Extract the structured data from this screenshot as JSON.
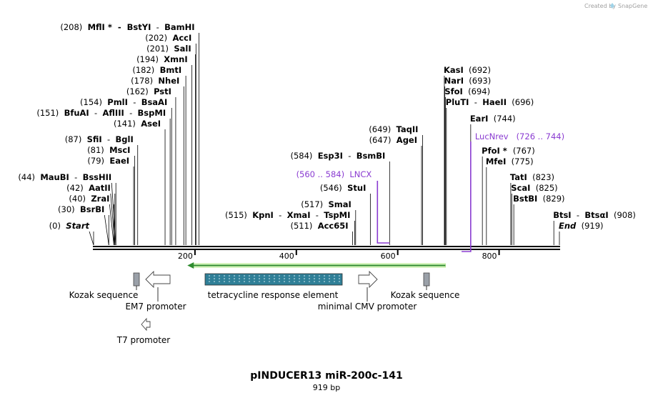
{
  "header": {
    "created_by": "Created by",
    "brand": "SnapGene"
  },
  "map": {
    "title": "pINDUCER13 miR-200c-141",
    "length_label": "919 bp",
    "total_bp": 919,
    "ticks": [
      {
        "pos": 200,
        "label": "200"
      },
      {
        "pos": 400,
        "label": "400"
      },
      {
        "pos": 600,
        "label": "600"
      },
      {
        "pos": 800,
        "label": "800"
      }
    ]
  },
  "sites": [
    {
      "id": "s-start",
      "pos": 0,
      "parts": [
        {
          "t": "(0)  ",
          "c": "num"
        },
        {
          "t": "Start",
          "c": "enz italic"
        }
      ]
    },
    {
      "id": "s-bsrbi",
      "pos": 30,
      "parts": [
        {
          "t": "(30)  ",
          "c": "num"
        },
        {
          "t": "BsrBI",
          "c": "enz"
        }
      ]
    },
    {
      "id": "s-zrai",
      "pos": 40,
      "parts": [
        {
          "t": "(40)  ",
          "c": "num"
        },
        {
          "t": "ZraI",
          "c": "enz"
        }
      ]
    },
    {
      "id": "s-aatii",
      "pos": 42,
      "parts": [
        {
          "t": "(42)  ",
          "c": "num"
        },
        {
          "t": "AatII",
          "c": "enz"
        }
      ]
    },
    {
      "id": "s-maubi",
      "pos": 44,
      "parts": [
        {
          "t": "(44)  ",
          "c": "num"
        },
        {
          "t": "MauBI",
          "c": "enz"
        },
        {
          "t": "  -  ",
          "c": "num"
        },
        {
          "t": "BssHII",
          "c": "enz"
        }
      ]
    },
    {
      "id": "s-eaei",
      "pos": 79,
      "parts": [
        {
          "t": "(79)  ",
          "c": "num"
        },
        {
          "t": "EaeI",
          "c": "enz"
        }
      ]
    },
    {
      "id": "s-msci",
      "pos": 81,
      "parts": [
        {
          "t": "(81)  ",
          "c": "num"
        },
        {
          "t": "MscI",
          "c": "enz"
        }
      ]
    },
    {
      "id": "s-sfii",
      "pos": 87,
      "parts": [
        {
          "t": "(87)  ",
          "c": "num"
        },
        {
          "t": "SfiI",
          "c": "enz"
        },
        {
          "t": "  -  ",
          "c": "num"
        },
        {
          "t": "BglI",
          "c": "enz"
        }
      ]
    },
    {
      "id": "s-asei",
      "pos": 141,
      "parts": [
        {
          "t": "(141)  ",
          "c": "num"
        },
        {
          "t": "AseI",
          "c": "enz"
        }
      ]
    },
    {
      "id": "s-bfuai",
      "pos": 151,
      "parts": [
        {
          "t": "(151)  ",
          "c": "num"
        },
        {
          "t": "BfuAI",
          "c": "enz"
        },
        {
          "t": "  -  ",
          "c": "num"
        },
        {
          "t": "AflIII",
          "c": "enz"
        },
        {
          "t": "  -  ",
          "c": "num"
        },
        {
          "t": "BspMI",
          "c": "enz"
        }
      ]
    },
    {
      "id": "s-pmli",
      "pos": 154,
      "parts": [
        {
          "t": "(154)  ",
          "c": "num"
        },
        {
          "t": "PmlI",
          "c": "enz"
        },
        {
          "t": "  -  ",
          "c": "num"
        },
        {
          "t": "BsaAI",
          "c": "enz"
        }
      ]
    },
    {
      "id": "s-psti",
      "pos": 162,
      "parts": [
        {
          "t": "(162)  ",
          "c": "num"
        },
        {
          "t": "PstI",
          "c": "enz"
        }
      ]
    },
    {
      "id": "s-nhei",
      "pos": 178,
      "parts": [
        {
          "t": "(178)  ",
          "c": "num"
        },
        {
          "t": "NheI",
          "c": "enz"
        }
      ]
    },
    {
      "id": "s-bmti",
      "pos": 182,
      "parts": [
        {
          "t": "(182)  ",
          "c": "num"
        },
        {
          "t": "BmtI",
          "c": "enz"
        }
      ]
    },
    {
      "id": "s-xmni",
      "pos": 194,
      "parts": [
        {
          "t": "(194)  ",
          "c": "num"
        },
        {
          "t": "XmnI",
          "c": "enz"
        }
      ]
    },
    {
      "id": "s-sali",
      "pos": 201,
      "parts": [
        {
          "t": "(201)  ",
          "c": "num"
        },
        {
          "t": "SalI",
          "c": "enz"
        }
      ]
    },
    {
      "id": "s-acci",
      "pos": 202,
      "parts": [
        {
          "t": "(202)  ",
          "c": "num"
        },
        {
          "t": "AccI",
          "c": "enz"
        }
      ]
    },
    {
      "id": "s-mfli",
      "pos": 208,
      "parts": [
        {
          "t": "(208)  ",
          "c": "num"
        },
        {
          "t": "MflI",
          "c": "enz"
        },
        {
          "t": " *  -  ",
          "c": "enz"
        },
        {
          "t": "BstYI",
          "c": "enz"
        },
        {
          "t": "  -  ",
          "c": "num"
        },
        {
          "t": "BamHI",
          "c": "enz"
        }
      ]
    },
    {
      "id": "s-acc65i",
      "pos": 511,
      "parts": [
        {
          "t": "(511)  ",
          "c": "num"
        },
        {
          "t": "Acc65I",
          "c": "enz"
        }
      ]
    },
    {
      "id": "s-kpni",
      "pos": 515,
      "parts": [
        {
          "t": "(515)  ",
          "c": "num"
        },
        {
          "t": "KpnI",
          "c": "enz"
        },
        {
          "t": "  -  ",
          "c": "num"
        },
        {
          "t": "XmaI",
          "c": "enz"
        },
        {
          "t": "  -  ",
          "c": "num"
        },
        {
          "t": "TspMI",
          "c": "enz"
        }
      ]
    },
    {
      "id": "s-smai",
      "pos": 517,
      "parts": [
        {
          "t": "(517)  ",
          "c": "num"
        },
        {
          "t": "SmaI",
          "c": "enz"
        }
      ]
    },
    {
      "id": "s-stui",
      "pos": 546,
      "parts": [
        {
          "t": "(546)  ",
          "c": "num"
        },
        {
          "t": "StuI",
          "c": "enz"
        }
      ]
    },
    {
      "id": "s-esp3i",
      "pos": 584,
      "parts": [
        {
          "t": "(584)  ",
          "c": "num"
        },
        {
          "t": "Esp3I",
          "c": "enz"
        },
        {
          "t": "  -  ",
          "c": "num"
        },
        {
          "t": "BsmBI",
          "c": "enz"
        }
      ]
    },
    {
      "id": "s-agei",
      "pos": 647,
      "parts": [
        {
          "t": "(647)  ",
          "c": "num"
        },
        {
          "t": "AgeI",
          "c": "enz"
        }
      ]
    },
    {
      "id": "s-taqii",
      "pos": 649,
      "parts": [
        {
          "t": "(649)  ",
          "c": "num"
        },
        {
          "t": "TaqII",
          "c": "enz"
        }
      ]
    },
    {
      "id": "s-kasi",
      "pos": 692,
      "parts": [
        {
          "t": "KasI",
          "c": "enz"
        },
        {
          "t": "  (692)",
          "c": "num"
        }
      ]
    },
    {
      "id": "s-nari",
      "pos": 693,
      "parts": [
        {
          "t": "NarI",
          "c": "enz"
        },
        {
          "t": "  (693)",
          "c": "num"
        }
      ]
    },
    {
      "id": "s-sfoi",
      "pos": 694,
      "parts": [
        {
          "t": "SfoI",
          "c": "enz"
        },
        {
          "t": "  (694)",
          "c": "num"
        }
      ]
    },
    {
      "id": "s-pluti",
      "pos": 696,
      "parts": [
        {
          "t": "PluTI",
          "c": "enz"
        },
        {
          "t": "  -  ",
          "c": "num"
        },
        {
          "t": "HaeII",
          "c": "enz"
        },
        {
          "t": "  (696)",
          "c": "num"
        }
      ]
    },
    {
      "id": "s-eari",
      "pos": 744,
      "parts": [
        {
          "t": "EarI",
          "c": "enz"
        },
        {
          "t": "  (744)",
          "c": "num"
        }
      ]
    },
    {
      "id": "s-pfoi",
      "pos": 767,
      "parts": [
        {
          "t": "PfoI",
          "c": "enz"
        },
        {
          "t": " *  ",
          "c": "enz"
        },
        {
          "t": "(767)",
          "c": "num"
        }
      ]
    },
    {
      "id": "s-mfei",
      "pos": 775,
      "parts": [
        {
          "t": "MfeI",
          "c": "enz"
        },
        {
          "t": "  (775)",
          "c": "num"
        }
      ]
    },
    {
      "id": "s-tati",
      "pos": 823,
      "parts": [
        {
          "t": "TatI",
          "c": "enz"
        },
        {
          "t": "  (823)",
          "c": "num"
        }
      ]
    },
    {
      "id": "s-scai",
      "pos": 825,
      "parts": [
        {
          "t": "ScaI",
          "c": "enz"
        },
        {
          "t": "  (825)",
          "c": "num"
        }
      ]
    },
    {
      "id": "s-bstbi",
      "pos": 829,
      "parts": [
        {
          "t": "BstBI",
          "c": "enz"
        },
        {
          "t": "  (829)",
          "c": "num"
        }
      ]
    },
    {
      "id": "s-btsi",
      "pos": 908,
      "parts": [
        {
          "t": "BtsI",
          "c": "enz"
        },
        {
          "t": "  -  ",
          "c": "num"
        },
        {
          "t": "BtsαI",
          "c": "enz"
        },
        {
          "t": "  (908)",
          "c": "num"
        }
      ]
    },
    {
      "id": "s-end",
      "pos": 919,
      "parts": [
        {
          "t": "End",
          "c": "enz italic"
        },
        {
          "t": "  (919)",
          "c": "num"
        }
      ]
    }
  ],
  "primers": [
    {
      "id": "lncx",
      "name": "LNCX",
      "range": "(560 .. 584)",
      "start": 560,
      "end": 584,
      "label": "(560 .. 584)  LNCX",
      "color": "#8a3bd1"
    },
    {
      "id": "lucnrev",
      "name": "LucNrev",
      "range": "(726 .. 744)",
      "start": 726,
      "end": 744,
      "label": "LucNrev   (726 .. 744)",
      "color": "#8a3bd1"
    }
  ],
  "features": [
    {
      "id": "kozak-left",
      "label": "Kozak sequence",
      "start": 80,
      "end": 90,
      "type": "box",
      "color": "#9aa0a8"
    },
    {
      "id": "em7-promoter",
      "label": "EM7 promoter",
      "start": 100,
      "end": 150,
      "type": "arrow-left",
      "color": "#ffffff"
    },
    {
      "id": "t7-promoter",
      "label": "T7 promoter",
      "start": 100,
      "end": 110,
      "type": "arrow-left",
      "color": "#ffffff"
    },
    {
      "id": "tre",
      "label": "tetracycline response element",
      "start": 220,
      "end": 490,
      "type": "box",
      "color": "#2f7f97"
    },
    {
      "id": "green-arrow",
      "label": "",
      "start": 185,
      "end": 694,
      "type": "line-arrow",
      "color": "#2e8b2e"
    },
    {
      "id": "min-cmv",
      "label": "minimal CMV promoter",
      "start": 525,
      "end": 560,
      "type": "arrow-right",
      "color": "#ffffff"
    },
    {
      "id": "kozak-right",
      "label": "Kozak sequence",
      "start": 655,
      "end": 665,
      "type": "box",
      "color": "#9aa0a8"
    }
  ]
}
